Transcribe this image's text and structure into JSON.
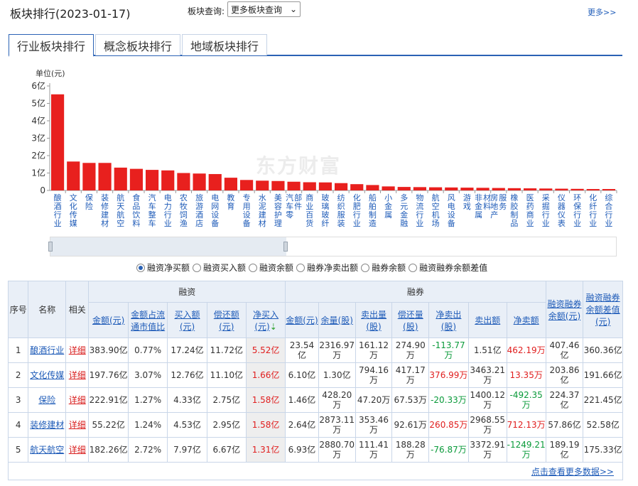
{
  "header": {
    "title": "板块排行(2023-01-17)",
    "query_label": "板块查询:",
    "query_select": "更多板块查询",
    "more_link": "更多>>"
  },
  "tabs": [
    {
      "label": "行业板块排行",
      "active": true
    },
    {
      "label": "概念板块排行",
      "active": false
    },
    {
      "label": "地域板块排行",
      "active": false
    }
  ],
  "chart_data": {
    "type": "bar",
    "unit_label": "单位(元)",
    "bar_color": "#e8201e",
    "ylim": [
      0,
      6
    ],
    "yticks": [
      "0",
      "1亿",
      "2亿",
      "3亿",
      "4亿",
      "5亿",
      "6亿"
    ],
    "categories": [
      "酿酒行业",
      "文化传媒",
      "保险",
      "装修建材",
      "航天航空",
      "食品饮料",
      "汽车整车",
      "电力行业",
      "农牧饲渔",
      "旅游酒店",
      "电网设备",
      "教育",
      "专用设备",
      "水泥建材",
      "美容护理",
      "汽车零部件",
      "商业百货",
      "玻璃玻纤",
      "纺织服装",
      "化肥行业",
      "船舶制造",
      "小金属",
      "多元金融",
      "物流行业",
      "航空机场",
      "风电设备",
      "游戏",
      "非金属材料",
      "房地产服务",
      "橡胶制品",
      "医药商业",
      "采掘行业",
      "仪器仪表",
      "环保行业",
      "化纤行业",
      "综合行业"
    ],
    "values": [
      5.52,
      1.66,
      1.58,
      1.58,
      1.31,
      1.24,
      1.18,
      1.15,
      1.0,
      0.97,
      0.94,
      0.73,
      0.6,
      0.56,
      0.54,
      0.5,
      0.47,
      0.46,
      0.42,
      0.36,
      0.31,
      0.23,
      0.2,
      0.19,
      0.18,
      0.17,
      0.16,
      0.15,
      0.14,
      0.13,
      0.12,
      0.11,
      0.1,
      0.09,
      0.08,
      0.08
    ],
    "watermark": "东方财富"
  },
  "radios": [
    {
      "label": "融资净买额",
      "checked": true
    },
    {
      "label": "融资买入额",
      "checked": false
    },
    {
      "label": "融资余额",
      "checked": false
    },
    {
      "label": "融券净卖出额",
      "checked": false
    },
    {
      "label": "融券余额",
      "checked": false
    },
    {
      "label": "融资融券余额差值",
      "checked": false
    }
  ],
  "table": {
    "h_seq": "序号",
    "h_name": "名称",
    "h_related": "相关",
    "h_rz": "融资",
    "h_rq": "融券",
    "h_rzrq_amt": "融资融券余额(元)",
    "h_rzrq_diff": "融资融券余额差值(元)",
    "rz_cols": [
      "金额(元)",
      "金额占流通市值比",
      "买入额(元)",
      "偿还额(元)",
      "净买入(元)"
    ],
    "rq_cols": [
      "金额(元)",
      "余量(股)",
      "卖出量(股)",
      "偿还量(股)",
      "净卖出(股)",
      "卖出额",
      "净卖额"
    ],
    "rows": [
      {
        "seq": "1",
        "name": "酿酒行业",
        "detail": "详细",
        "rz_amt": "383.90亿",
        "rz_ratio": "0.77%",
        "rz_buy": "17.24亿",
        "rz_repay": "11.72亿",
        "rz_net": "5.52亿",
        "rq_amt": "23.54亿",
        "rq_remain": "2316.97万",
        "rq_sell_vol": "161.12万",
        "rq_repay_vol": "274.90万",
        "rq_net_vol": "-113.77万",
        "rq_sell_amt": "1.51亿",
        "rq_net_amt": "462.19万",
        "rzrq_amt": "407.46亿",
        "rzrq_diff": "360.36亿"
      },
      {
        "seq": "2",
        "name": "文化传媒",
        "detail": "详细",
        "rz_amt": "197.76亿",
        "rz_ratio": "3.07%",
        "rz_buy": "12.76亿",
        "rz_repay": "11.10亿",
        "rz_net": "1.66亿",
        "rq_amt": "6.10亿",
        "rq_remain": "1.30亿",
        "rq_sell_vol": "794.16万",
        "rq_repay_vol": "417.17万",
        "rq_net_vol": "376.99万",
        "rq_sell_amt": "3463.21万",
        "rq_net_amt": "13.35万",
        "rzrq_amt": "203.86亿",
        "rzrq_diff": "191.66亿"
      },
      {
        "seq": "3",
        "name": "保险",
        "detail": "详细",
        "rz_amt": "222.91亿",
        "rz_ratio": "1.27%",
        "rz_buy": "4.33亿",
        "rz_repay": "2.75亿",
        "rz_net": "1.58亿",
        "rq_amt": "1.46亿",
        "rq_remain": "428.20万",
        "rq_sell_vol": "47.20万",
        "rq_repay_vol": "67.53万",
        "rq_net_vol": "-20.33万",
        "rq_sell_amt": "1400.12万",
        "rq_net_amt": "-492.35万",
        "rzrq_amt": "224.37亿",
        "rzrq_diff": "221.45亿"
      },
      {
        "seq": "4",
        "name": "装修建材",
        "detail": "详细",
        "rz_amt": "55.22亿",
        "rz_ratio": "1.24%",
        "rz_buy": "4.53亿",
        "rz_repay": "2.95亿",
        "rz_net": "1.58亿",
        "rq_amt": "2.64亿",
        "rq_remain": "2873.11万",
        "rq_sell_vol": "353.46万",
        "rq_repay_vol": "92.61万",
        "rq_net_vol": "260.85万",
        "rq_sell_amt": "2968.55万",
        "rq_net_amt": "712.13万",
        "rzrq_amt": "57.86亿",
        "rzrq_diff": "52.58亿"
      },
      {
        "seq": "5",
        "name": "航天航空",
        "detail": "详细",
        "rz_amt": "182.26亿",
        "rz_ratio": "2.72%",
        "rz_buy": "7.97亿",
        "rz_repay": "6.67亿",
        "rz_net": "1.31亿",
        "rq_amt": "6.93亿",
        "rq_remain": "2880.70万",
        "rq_sell_vol": "111.41万",
        "rq_repay_vol": "188.28万",
        "rq_net_vol": "-76.87万",
        "rq_sell_amt": "3372.91万",
        "rq_net_amt": "-1249.21万",
        "rzrq_amt": "189.19亿",
        "rzrq_diff": "175.33亿"
      }
    ],
    "more_link": "点击查看更多数据>>"
  }
}
